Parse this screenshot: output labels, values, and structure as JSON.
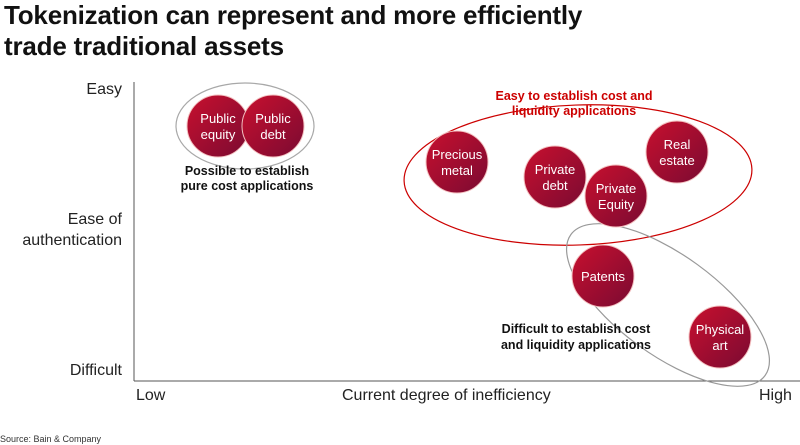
{
  "title": "Tokenization can represent and more efficiently trade traditional assets",
  "title_line1": "Tokenization can represent and more efficiently",
  "title_line2": "trade traditional assets",
  "axes": {
    "y_top": "Easy",
    "y_mid_line1": "Ease of",
    "y_mid_line2": "authentication",
    "y_bottom": "Difficult",
    "x_left": "Low",
    "x_mid": "Current degree of inefficiency",
    "x_right": "High"
  },
  "colors": {
    "bubble_light": "#c8102e",
    "bubble_dark": "#7a0a32",
    "highlight_red": "#cc0000",
    "gray_outline": "#999999"
  },
  "groups": [
    {
      "id": "pure-cost",
      "label_lines": [
        "Possible to establish",
        "pure cost applications"
      ],
      "color": "#111111"
    },
    {
      "id": "cost-liquidity",
      "label_lines": [
        "Easy to establish cost and",
        "liquidity applications"
      ],
      "color": "#cc0000"
    },
    {
      "id": "difficult",
      "label_lines": [
        "Difficult to establish cost",
        "and liquidity applications"
      ],
      "color": "#111111"
    }
  ],
  "bubbles": [
    {
      "id": "public-equity",
      "lines": [
        "Public",
        "equity"
      ]
    },
    {
      "id": "public-debt",
      "lines": [
        "Public",
        "debt"
      ]
    },
    {
      "id": "precious-metal",
      "lines": [
        "Precious",
        "metal"
      ]
    },
    {
      "id": "private-debt",
      "lines": [
        "Private",
        "debt"
      ]
    },
    {
      "id": "private-equity",
      "lines": [
        "Private",
        "Equity"
      ]
    },
    {
      "id": "real-estate",
      "lines": [
        "Real",
        "estate"
      ]
    },
    {
      "id": "patents",
      "lines": [
        "Patents"
      ]
    },
    {
      "id": "physical-art",
      "lines": [
        "Physical",
        "art"
      ]
    }
  ],
  "source": "Source: Bain & Company"
}
